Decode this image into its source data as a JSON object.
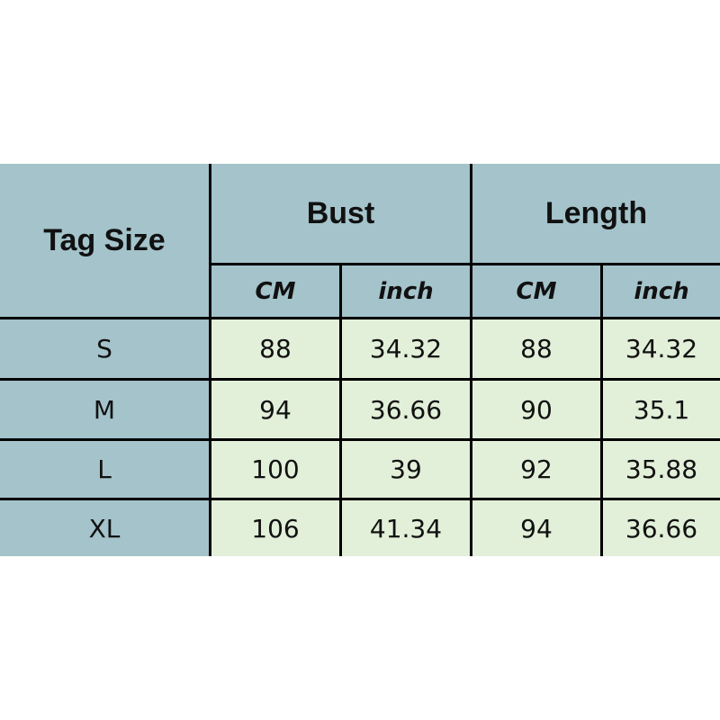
{
  "table": {
    "corner": "Tag Size",
    "groups": [
      "Bust",
      "Length"
    ],
    "units": [
      "CM",
      "inch",
      "CM",
      "inch"
    ],
    "rows": [
      {
        "size": "S",
        "values": [
          "88",
          "34.32",
          "88",
          "34.32"
        ]
      },
      {
        "size": "M",
        "values": [
          "94",
          "36.66",
          "90",
          "35.1"
        ]
      },
      {
        "size": "L",
        "values": [
          "100",
          "39",
          "92",
          "35.88"
        ]
      },
      {
        "size": "XL",
        "values": [
          "106",
          "41.34",
          "94",
          "36.66"
        ]
      }
    ]
  },
  "colors": {
    "header": "#a4c3cb",
    "cell": "#e2efd9",
    "border": "#000000"
  }
}
